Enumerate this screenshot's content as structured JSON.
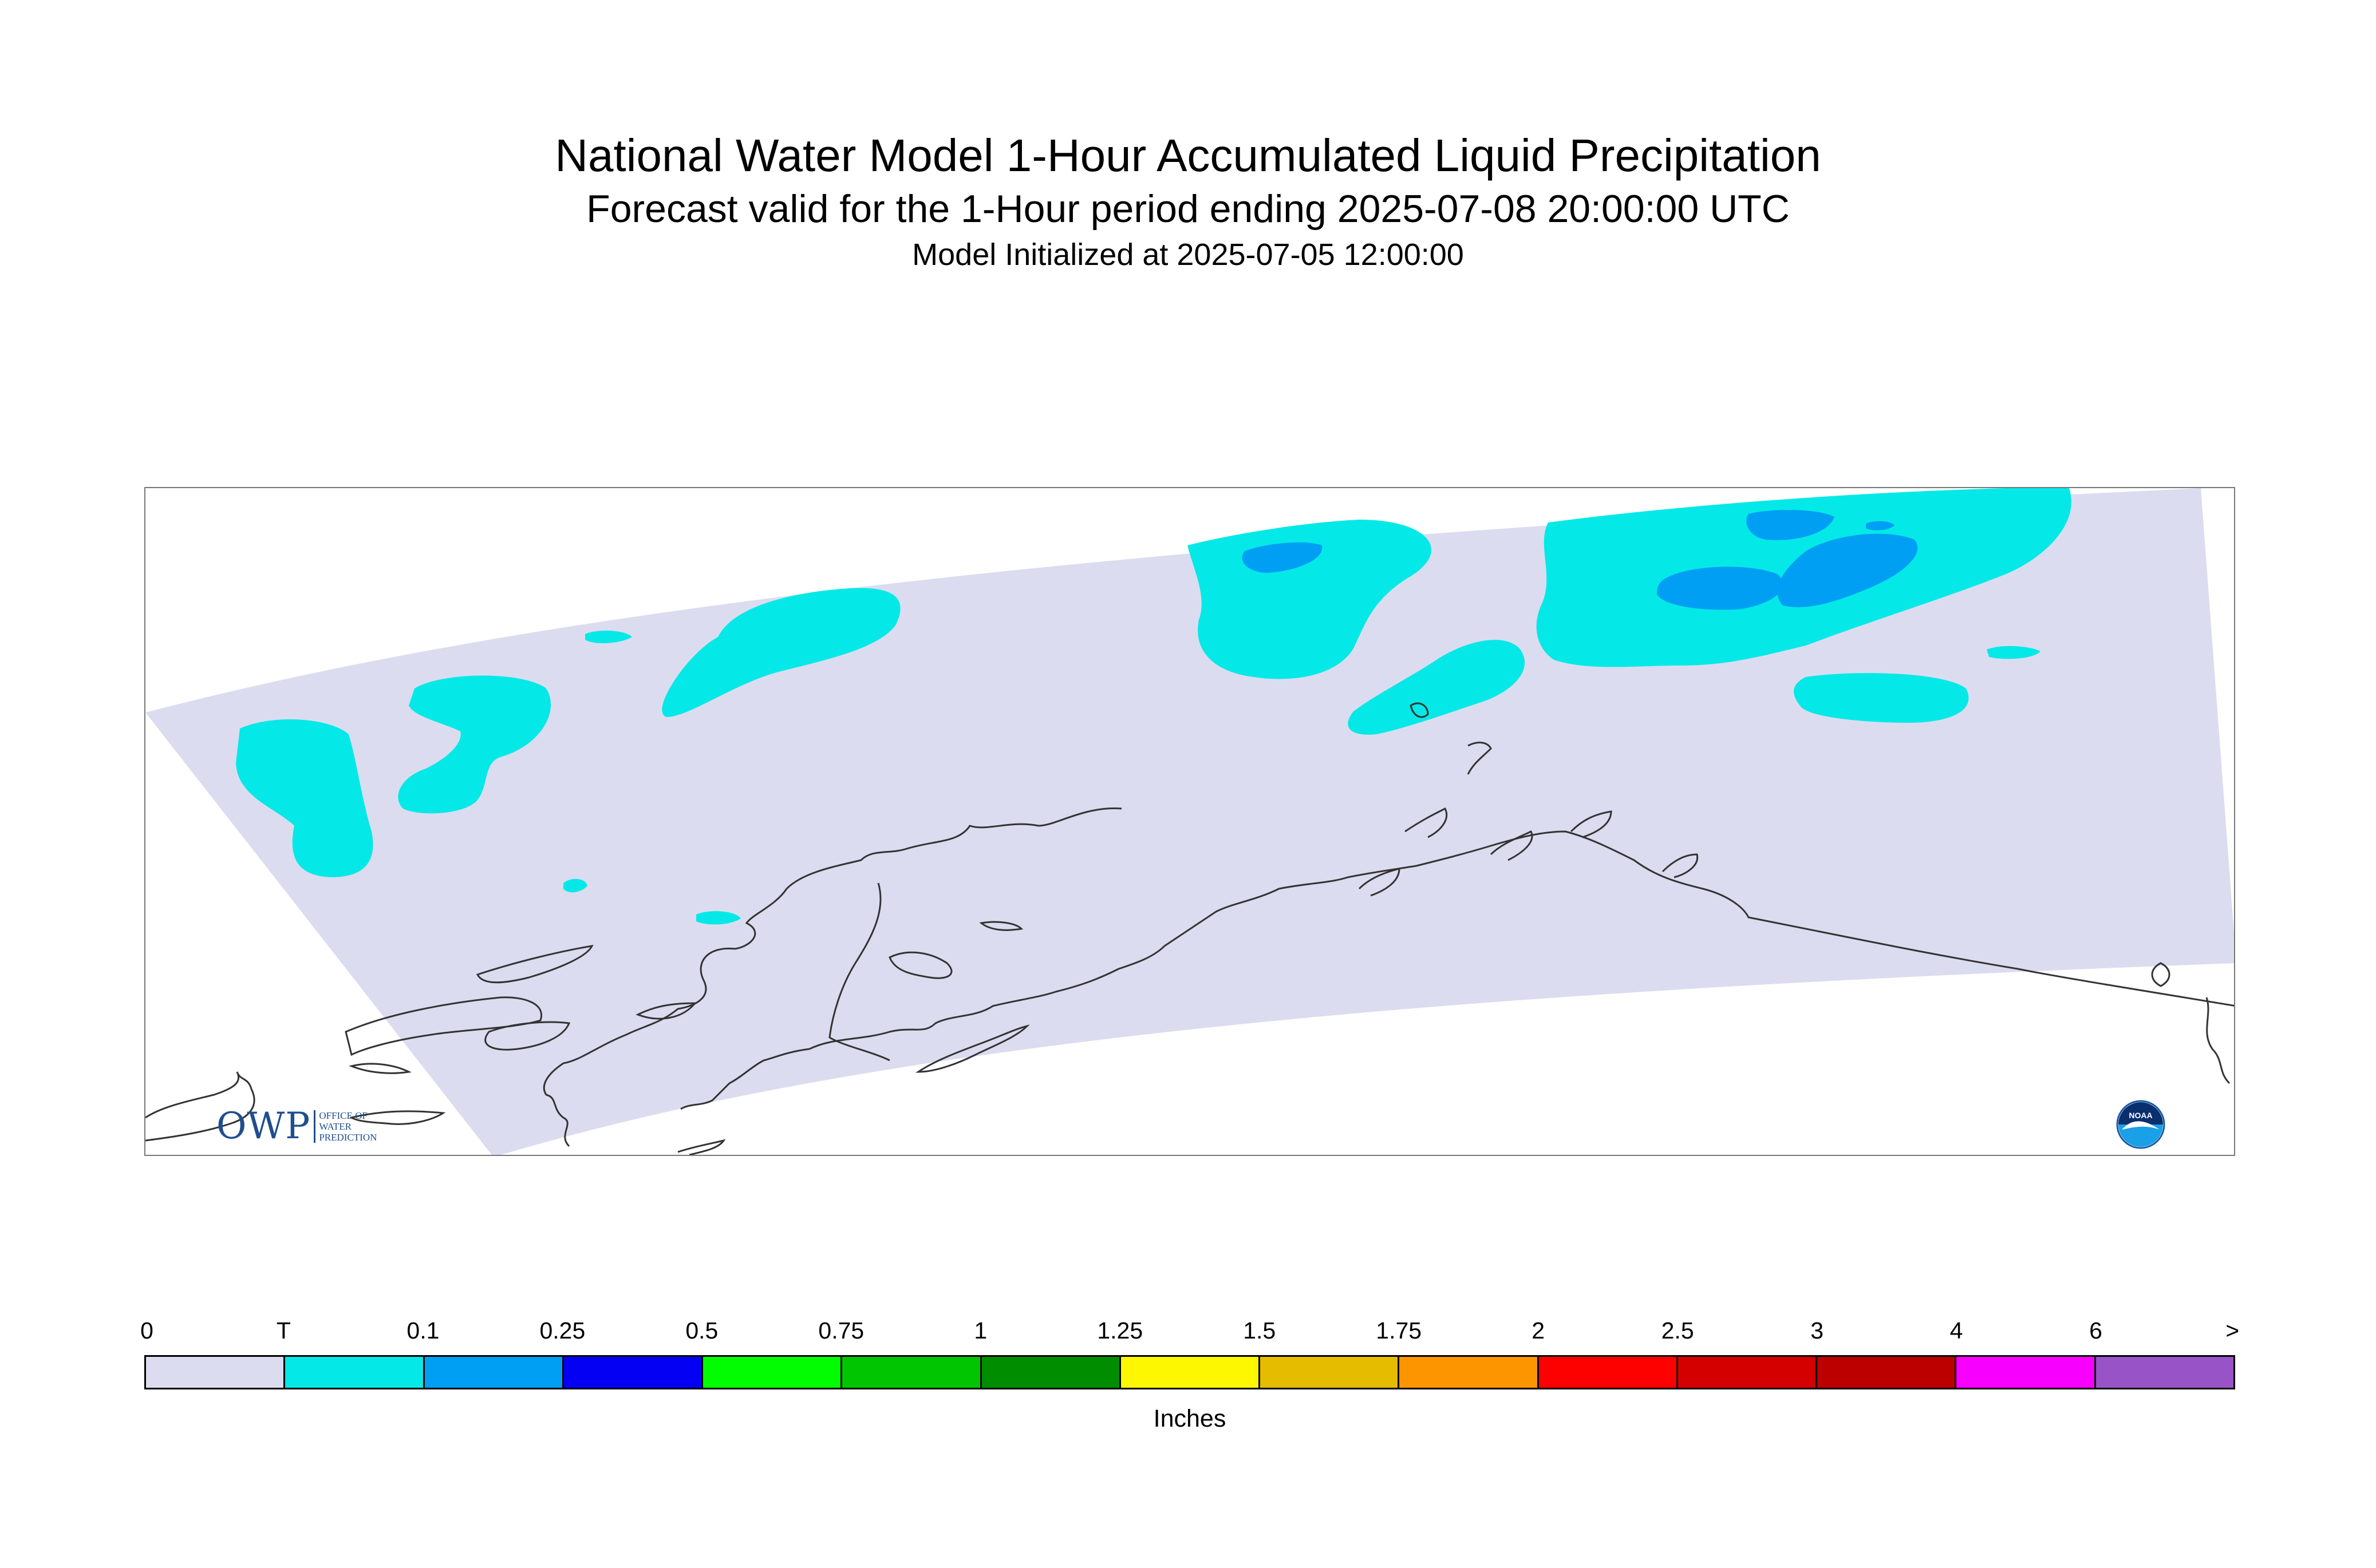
{
  "header": {
    "title": "National Water Model 1-Hour Accumulated Liquid Precipitation",
    "subtitle": "Forecast valid for the 1-Hour period ending 2025-07-08 20:00:00 UTC",
    "init": "Model Initialized at 2025-07-05 12:00:00"
  },
  "legend": {
    "tick_labels": [
      "0",
      "T",
      "0.1",
      "0.25",
      "0.5",
      "0.75",
      "1",
      "1.25",
      "1.5",
      "1.75",
      "2",
      "2.5",
      "3",
      "4",
      "6",
      ">"
    ],
    "colors": [
      "#dcdcf0",
      "#04e9e7",
      "#019ff4",
      "#0300f4",
      "#02fd02",
      "#01c501",
      "#008e00",
      "#fdf802",
      "#e5bc00",
      "#fd9500",
      "#fd0000",
      "#d40000",
      "#bc0000",
      "#f800fd",
      "#9854c6"
    ],
    "units": "Inches"
  },
  "map": {
    "domain_fill": "#dcdcf0",
    "trace_color": "#04e9e7",
    "light_color": "#019ff4",
    "coast_color": "#333333"
  },
  "logos": {
    "owp_letters": "OWP",
    "owp_lines": [
      "OFFICE OF",
      "WATER",
      "PREDICTION"
    ],
    "noaa_text": "NOAA"
  }
}
